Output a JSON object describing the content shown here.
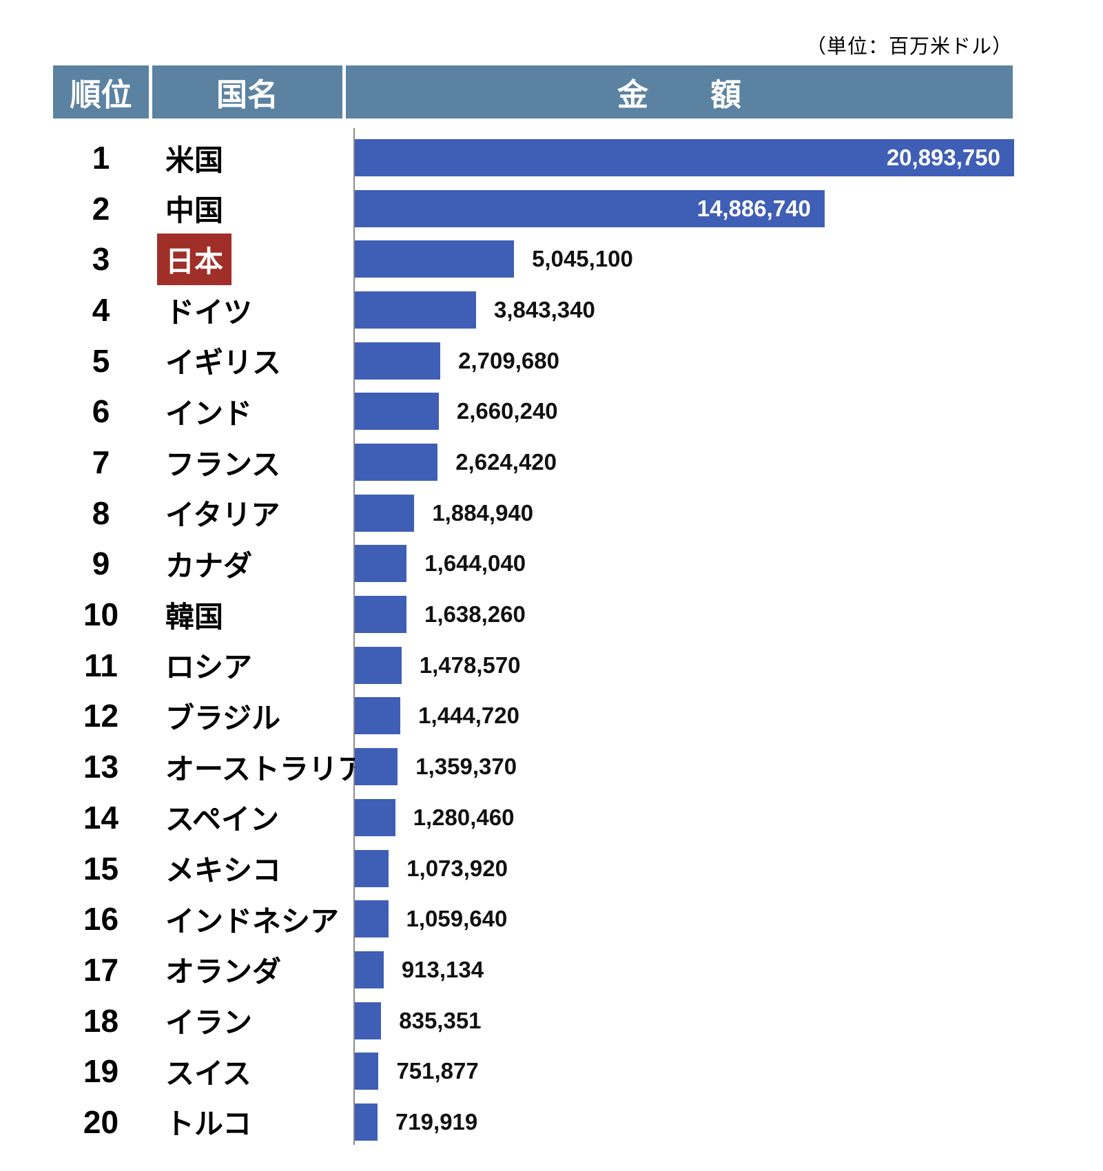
{
  "unit_note": "（単位：百万米ドル）",
  "table_header": {
    "rank": "順位",
    "country": "国名",
    "amount": "金　　額"
  },
  "colors": {
    "header_bg": "#5B82A1",
    "bar": "#3F5EB5",
    "highlight_bg": "#9F2F28",
    "highlight_text": "#FFFFFF",
    "axis_line": "#8A8A8A",
    "value_text": "#111111"
  },
  "chart_data": {
    "type": "bar",
    "orientation": "horizontal",
    "unit": "百万米ドル",
    "max_value": 20893750,
    "highlighted_country": "日本",
    "legend": null,
    "grid": false,
    "rows": [
      {
        "rank": "1",
        "country": "米国",
        "value": 20893750,
        "label": "20,893,750",
        "label_inside": true,
        "highlight": false
      },
      {
        "rank": "2",
        "country": "中国",
        "value": 14886740,
        "label": "14,886,740",
        "label_inside": true,
        "highlight": false
      },
      {
        "rank": "3",
        "country": "日本",
        "value": 5045100,
        "label": "5,045,100",
        "label_inside": false,
        "highlight": true
      },
      {
        "rank": "4",
        "country": "ドイツ",
        "value": 3843340,
        "label": "3,843,340",
        "label_inside": false,
        "highlight": false
      },
      {
        "rank": "5",
        "country": "イギリス",
        "value": 2709680,
        "label": "2,709,680",
        "label_inside": false,
        "highlight": false
      },
      {
        "rank": "6",
        "country": "インド",
        "value": 2660240,
        "label": "2,660,240",
        "label_inside": false,
        "highlight": false
      },
      {
        "rank": "7",
        "country": "フランス",
        "value": 2624420,
        "label": "2,624,420",
        "label_inside": false,
        "highlight": false
      },
      {
        "rank": "8",
        "country": "イタリア",
        "value": 1884940,
        "label": "1,884,940",
        "label_inside": false,
        "highlight": false
      },
      {
        "rank": "9",
        "country": "カナダ",
        "value": 1644040,
        "label": "1,644,040",
        "label_inside": false,
        "highlight": false
      },
      {
        "rank": "10",
        "country": "韓国",
        "value": 1638260,
        "label": "1,638,260",
        "label_inside": false,
        "highlight": false
      },
      {
        "rank": "11",
        "country": "ロシア",
        "value": 1478570,
        "label": "1,478,570",
        "label_inside": false,
        "highlight": false
      },
      {
        "rank": "12",
        "country": "ブラジル",
        "value": 1444720,
        "label": "1,444,720",
        "label_inside": false,
        "highlight": false
      },
      {
        "rank": "13",
        "country": "オーストラリア",
        "value": 1359370,
        "label": "1,359,370",
        "label_inside": false,
        "highlight": false
      },
      {
        "rank": "14",
        "country": "スペイン",
        "value": 1280460,
        "label": "1,280,460",
        "label_inside": false,
        "highlight": false
      },
      {
        "rank": "15",
        "country": "メキシコ",
        "value": 1073920,
        "label": "1,073,920",
        "label_inside": false,
        "highlight": false
      },
      {
        "rank": "16",
        "country": "インドネシア",
        "value": 1059640,
        "label": "1,059,640",
        "label_inside": false,
        "highlight": false
      },
      {
        "rank": "17",
        "country": "オランダ",
        "value": 913134,
        "label": "913,134",
        "label_inside": false,
        "highlight": false
      },
      {
        "rank": "18",
        "country": "イラン",
        "value": 835351,
        "label": "835,351",
        "label_inside": false,
        "highlight": false
      },
      {
        "rank": "19",
        "country": "スイス",
        "value": 751877,
        "label": "751,877",
        "label_inside": false,
        "highlight": false
      },
      {
        "rank": "20",
        "country": "トルコ",
        "value": 719919,
        "label": "719,919",
        "label_inside": false,
        "highlight": false
      }
    ]
  }
}
